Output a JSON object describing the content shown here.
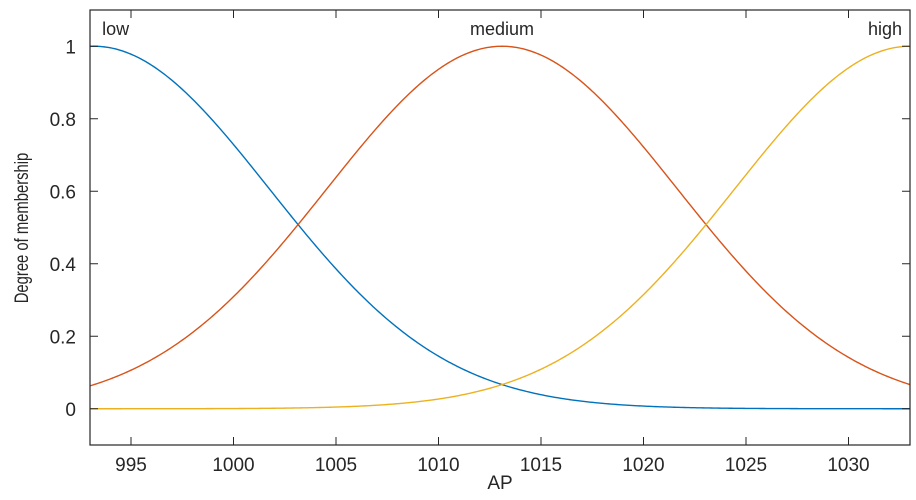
{
  "chart_data": {
    "type": "line",
    "title": "",
    "xlabel": "AP",
    "ylabel": "Degree of membership",
    "xlim": [
      993,
      1033
    ],
    "ylim": [
      -0.1,
      1.1
    ],
    "xticks": [
      995,
      1000,
      1005,
      1010,
      1015,
      1020,
      1025,
      1030
    ],
    "yticks": [
      0,
      0.2,
      0.4,
      0.6,
      0.8,
      1
    ],
    "grid": false,
    "series": [
      {
        "name": "low",
        "function": "gaussian",
        "center": 993.2,
        "sigma": 8.55,
        "color": "#0072BD"
      },
      {
        "name": "medium",
        "function": "gaussian",
        "center": 1013.1,
        "sigma": 8.55,
        "color": "#D95319"
      },
      {
        "name": "high",
        "function": "gaussian",
        "center": 1033.0,
        "sigma": 8.55,
        "color": "#EDB120"
      }
    ],
    "annotations": [
      "low",
      "medium",
      "high"
    ]
  }
}
